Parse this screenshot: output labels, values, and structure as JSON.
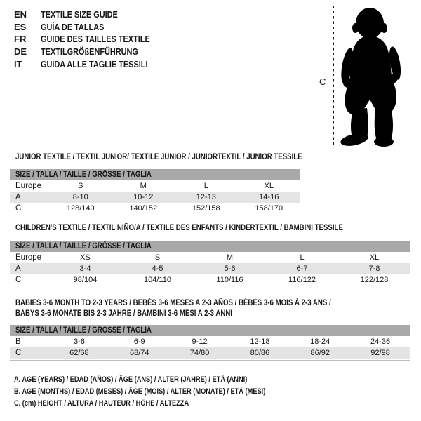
{
  "languages": [
    {
      "code": "EN",
      "title": "TEXTILE SIZE GUIDE"
    },
    {
      "code": "ES",
      "title": "GUÍA DE TALLAS"
    },
    {
      "code": "FR",
      "title": "GUIDE DES TAILLES TEXTILE"
    },
    {
      "code": "DE",
      "title": "TEXTILGRÖßENFÜHRUNG"
    },
    {
      "code": "IT",
      "title": "GUIDA ALLE TAGLIE TESSILI"
    }
  ],
  "figure": {
    "label": "C"
  },
  "tables": [
    {
      "title_lines": [
        "JUNIOR TEXTILE / TEXTIL JUNIOR/ TEXTILE JUNIOR / JUNIORTEXTIL / JUNIOR TESSILE"
      ],
      "size_header": "SIZE / TALLA / TAILLE / GRÖSSE / TAGLIA",
      "rows": [
        {
          "label": "Europe",
          "values": [
            "S",
            "M",
            "L",
            "XL"
          ],
          "shaded": false
        },
        {
          "label": "A",
          "values": [
            "8-10",
            "10-12",
            "12-13",
            "14-16"
          ],
          "shaded": true
        },
        {
          "label": "C",
          "values": [
            "128/140",
            "140/152",
            "152/158",
            "158/170"
          ],
          "shaded": false
        }
      ],
      "bottom_rule": false
    },
    {
      "title_lines": [
        "CHILDREN'S TEXTILE / TEXTIL NIÑO/A / TEXTILE DES ENFANTS / KINDERTEXTIL / BAMBINI TESSILE"
      ],
      "size_header": "SIZE / TALLA / TAILLE / GRÖSSE / TAGLIA",
      "rows": [
        {
          "label": "Europe",
          "values": [
            "XS",
            "S",
            "M",
            "L",
            "XL"
          ],
          "shaded": false
        },
        {
          "label": "A",
          "values": [
            "3-4",
            "4-5",
            "5-6",
            "6-7",
            "7-8"
          ],
          "shaded": true
        },
        {
          "label": "C",
          "values": [
            "98/104",
            "104/110",
            "110/116",
            "116/122",
            "122/128"
          ],
          "shaded": false
        }
      ],
      "bottom_rule": false
    },
    {
      "title_lines": [
        "BABIES 3-6 MONTH TO 2-3 YEARS / BEBÉS 3-6 MESES A 2-3 AÑOS / BÉBÉS 3-6 MOIS À 2-3 ANS /",
        "BABYS 3-6 MONATE BIS 2-3 JAHRE / BAMBINI 3-6 MESI A 2-3 ANNI"
      ],
      "size_header": "SIZE / TALLA / TAILLE / GRÖSSE / TAGLIA",
      "rows": [
        {
          "label": "B",
          "values": [
            "3-6",
            "6-9",
            "9-12",
            "12-18",
            "18-24",
            "24-36"
          ],
          "shaded": false
        },
        {
          "label": "C",
          "values": [
            "62/68",
            "68/74",
            "74/80",
            "80/86",
            "86/92",
            "92/98"
          ],
          "shaded": true
        }
      ],
      "bottom_rule": true
    }
  ],
  "legend": [
    "A. AGE (YEARS) / EDAD (AÑOS) / ÂGE (ANS) / ALTER (JAHRE) / ETÀ (ANNI)",
    "B. AGE (MONTHS) / EDAD (MESES) / ÂGE (MOIS) / ALTER (MONATE) / ETÀ (MESI)",
    "C. (cm) HEIGHT / ALTURA / HAUTEUR / HÖHE / ALTEZZA"
  ],
  "colors": {
    "text": "#161616",
    "header_bar": "#a9a9a9",
    "shaded_row": "#e4e4e4",
    "rule": "#bdbdbd",
    "silhouette": "#000000"
  }
}
